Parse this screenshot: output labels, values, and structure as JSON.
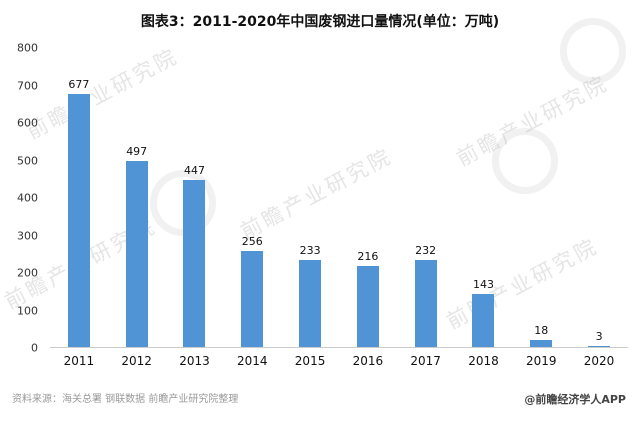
{
  "chart_data": {
    "type": "bar",
    "title": "图表3：2011-2020年中国废钢进口量情况(单位：万吨)",
    "categories": [
      "2011",
      "2012",
      "2013",
      "2014",
      "2015",
      "2016",
      "2017",
      "2018",
      "2019",
      "2020"
    ],
    "values": [
      677,
      497,
      447,
      256,
      233,
      216,
      232,
      143,
      18,
      3
    ],
    "xlabel": "",
    "ylabel": "",
    "ylim": [
      0,
      800
    ],
    "yticks": [
      0,
      100,
      200,
      300,
      400,
      500,
      600,
      700,
      800
    ],
    "grid": false,
    "legend": false,
    "bar_color": "#5094d6"
  },
  "footer": {
    "source": "资料来源：海关总署 钢联数据 前瞻产业研究院整理",
    "credit": "@前瞻经济学人APP"
  },
  "watermark": {
    "text": "前瞻产业研究院"
  }
}
